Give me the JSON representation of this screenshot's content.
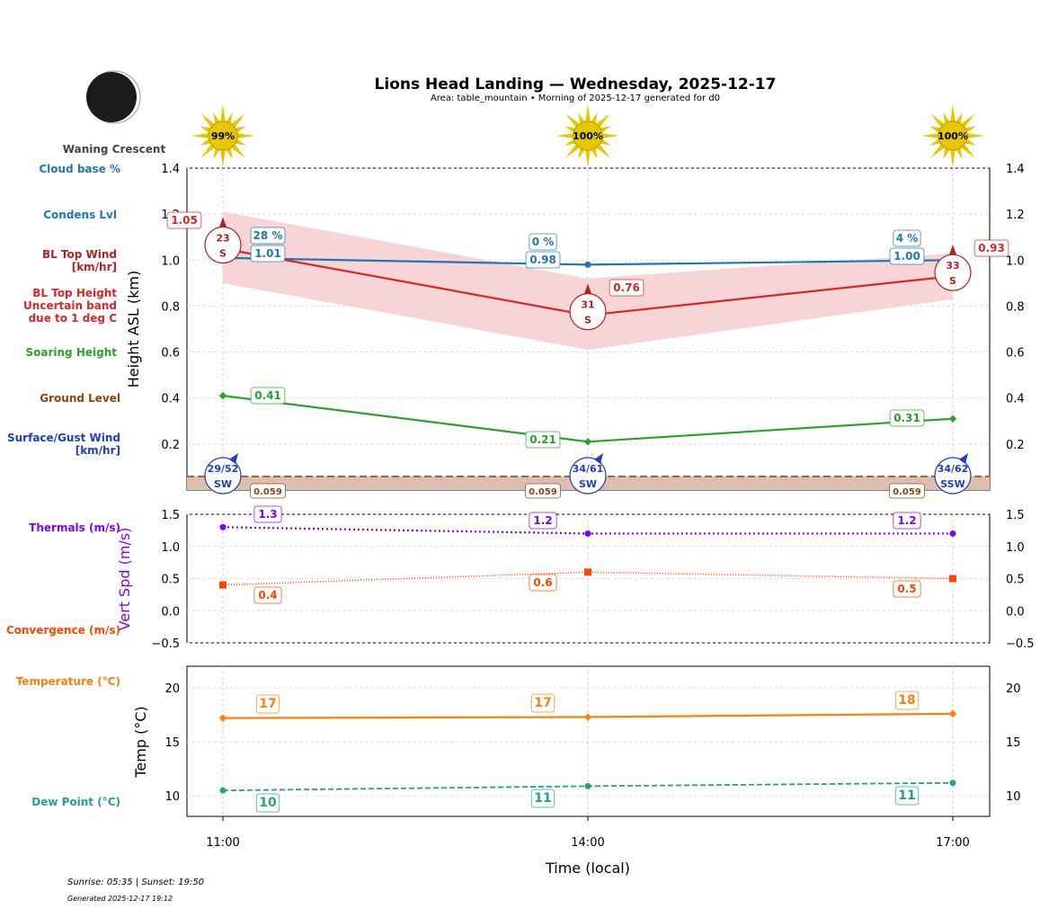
{
  "title": "Lions Head Landing — Wednesday, 2025-12-17",
  "subtitle": "Area: table_mountain • Morning of 2025-12-17 generated for d0",
  "moon_phase": "Waning Crescent",
  "footer": {
    "sun_times": "Sunrise: 05:35 | Sunset: 19:50",
    "generated": "Generated 2025-12-17 19:12"
  },
  "colors": {
    "cloud": "#1f77b4",
    "bl": "#d62728",
    "band": "#f7d4d5",
    "soar": "#2ca02c",
    "ground": "#8b4513",
    "surface": "#1f3fbf",
    "thermal": "#8000ff",
    "conv": "#ff4500",
    "temp": "#ff7f0e",
    "dew": "#26a08f",
    "sun": "#e6c800"
  },
  "chart_data": [
    {
      "type": "line",
      "ylabel": "Height ASL (km)",
      "ylim": [
        0.0,
        1.4
      ],
      "yticks": [
        "0.2",
        "0.4",
        "0.6",
        "0.8",
        "1.0",
        "1.2",
        "1.4"
      ],
      "grid": true,
      "x": [
        "11:00",
        "14:00",
        "17:00"
      ],
      "sun_percent": [
        "99%",
        "100%",
        "100%"
      ],
      "side_labels": [
        "Cloud base %",
        "Condens Lvl",
        "BL Top Wind [km/hr]",
        "BL Top Height Uncertain band due to 1 deg C",
        "Soaring Height",
        "Ground Level",
        "Surface/Gust Wind [km/hr]"
      ],
      "series": [
        {
          "name": "Condens Lvl",
          "values": [
            1.01,
            0.98,
            1.0
          ],
          "labels": [
            "1.01",
            "0.98",
            "1.00"
          ],
          "cloud_base_labels": [
            "28 %",
            "0 %",
            "4 %"
          ]
        },
        {
          "name": "BL Top Height",
          "values": [
            1.05,
            0.76,
            0.93
          ],
          "labels": [
            "1.05",
            "0.76",
            "0.93"
          ],
          "band_upper": [
            1.21,
            0.92,
            1.03
          ],
          "band_lower": [
            0.9,
            0.61,
            0.83
          ]
        },
        {
          "name": "Soaring Height",
          "values": [
            0.41,
            0.21,
            0.31
          ],
          "labels": [
            "0.41",
            "0.21",
            "0.31"
          ]
        },
        {
          "name": "Ground Level",
          "values": [
            0.059,
            0.059,
            0.059
          ],
          "labels": [
            "0.059",
            "0.059",
            "0.059"
          ]
        }
      ],
      "bl_wind": [
        {
          "speed": "23",
          "dir": "S"
        },
        {
          "speed": "31",
          "dir": "S"
        },
        {
          "speed": "33",
          "dir": "S"
        }
      ],
      "surface_wind": [
        {
          "speed": "29/52",
          "dir": "SW"
        },
        {
          "speed": "34/61",
          "dir": "SW"
        },
        {
          "speed": "34/62",
          "dir": "SSW"
        }
      ]
    },
    {
      "type": "line",
      "ylabel": "Vert Spd (m/s)",
      "ylim": [
        -0.5,
        1.5
      ],
      "yticks": [
        "−0.5",
        "0.0",
        "0.5",
        "1.0",
        "1.5"
      ],
      "grid": true,
      "x": [
        "11:00",
        "14:00",
        "17:00"
      ],
      "series": [
        {
          "name": "Thermals (m/s)",
          "values": [
            1.3,
            1.2,
            1.2
          ],
          "labels": [
            "1.3",
            "1.2",
            "1.2"
          ]
        },
        {
          "name": "Convergence (m/s)",
          "values": [
            0.4,
            0.6,
            0.5
          ],
          "labels": [
            "0.4",
            "0.6",
            "0.5"
          ]
        }
      ]
    },
    {
      "type": "line",
      "ylabel": "Temp (°C)",
      "xlabel": "Time (local)",
      "ylim": [
        8.1,
        22
      ],
      "yticks": [
        "10",
        "15",
        "20"
      ],
      "xticks": [
        "11:00",
        "14:00",
        "17:00"
      ],
      "grid": true,
      "x": [
        "11:00",
        "14:00",
        "17:00"
      ],
      "series": [
        {
          "name": "Temperature (°C)",
          "values": [
            17.2,
            17.3,
            17.6
          ],
          "labels": [
            "17",
            "17",
            "18"
          ]
        },
        {
          "name": "Dew Point (°C)",
          "values": [
            10.5,
            10.9,
            11.2
          ],
          "labels": [
            "10",
            "11",
            "11"
          ]
        }
      ]
    }
  ]
}
